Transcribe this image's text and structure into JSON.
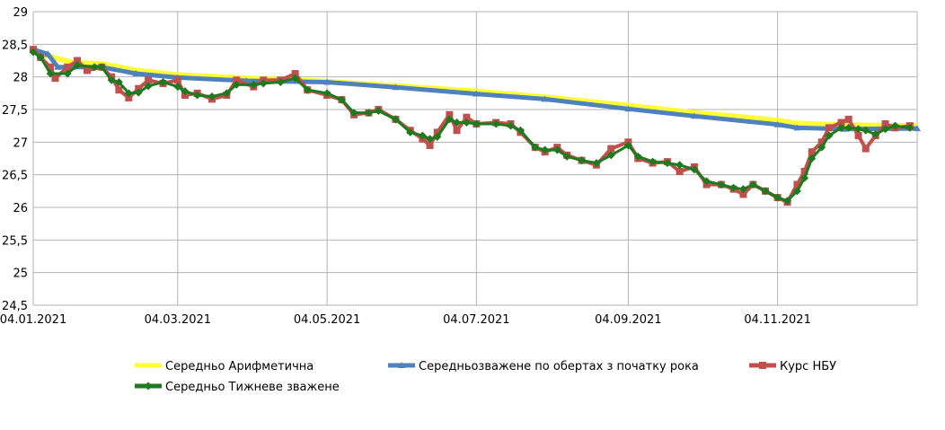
{
  "chart_data": {
    "type": "line",
    "title": "",
    "xlabel": "",
    "ylabel": "",
    "ylim": [
      24.5,
      29
    ],
    "y_ticks": [
      "24,5",
      "25",
      "25,5",
      "26",
      "26,5",
      "27",
      "27,5",
      "28",
      "28,5",
      "29"
    ],
    "x_ticks": [
      "04.01.2021",
      "04.03.2021",
      "04.05.2021",
      "04.07.2021",
      "04.09.2021",
      "04.11.2021"
    ],
    "x_tick_dates": [
      "2021-01-04",
      "2021-03-04",
      "2021-05-04",
      "2021-07-04",
      "2021-09-04",
      "2021-11-04"
    ],
    "xlim": [
      "2021-01-04",
      "2021-12-31"
    ],
    "grid": true,
    "legend_position": "bottom",
    "series": [
      {
        "name": "Середньо Арифметична",
        "color": "#ffff33",
        "marker": "none",
        "points": [
          [
            "2021-01-04",
            28.4
          ],
          [
            "2021-01-10",
            28.32
          ],
          [
            "2021-01-20",
            28.22
          ],
          [
            "2021-02-01",
            28.2
          ],
          [
            "2021-02-15",
            28.1
          ],
          [
            "2021-03-04",
            28.03
          ],
          [
            "2021-04-01",
            27.98
          ],
          [
            "2021-05-04",
            27.93
          ],
          [
            "2021-06-01",
            27.86
          ],
          [
            "2021-07-04",
            27.78
          ],
          [
            "2021-08-01",
            27.69
          ],
          [
            "2021-09-04",
            27.56
          ],
          [
            "2021-10-01",
            27.45
          ],
          [
            "2021-10-25",
            27.37
          ],
          [
            "2021-11-04",
            27.33
          ],
          [
            "2021-11-12",
            27.29
          ],
          [
            "2021-12-01",
            27.26
          ],
          [
            "2021-12-31",
            27.25
          ]
        ]
      },
      {
        "name": "Середньозважене по обертах з початку рока",
        "color": "#4f81bd",
        "marker": "triangle",
        "points": [
          [
            "2021-01-04",
            28.42
          ],
          [
            "2021-01-10",
            28.35
          ],
          [
            "2021-01-14",
            28.15
          ],
          [
            "2021-01-20",
            28.15
          ],
          [
            "2021-02-01",
            28.15
          ],
          [
            "2021-02-15",
            28.05
          ],
          [
            "2021-03-04",
            27.99
          ],
          [
            "2021-04-01",
            27.94
          ],
          [
            "2021-05-04",
            27.92
          ],
          [
            "2021-06-01",
            27.84
          ],
          [
            "2021-07-04",
            27.74
          ],
          [
            "2021-08-01",
            27.66
          ],
          [
            "2021-09-04",
            27.51
          ],
          [
            "2021-10-01",
            27.4
          ],
          [
            "2021-11-04",
            27.27
          ],
          [
            "2021-11-12",
            27.22
          ],
          [
            "2021-12-01",
            27.2
          ],
          [
            "2021-12-31",
            27.21
          ]
        ]
      },
      {
        "name": "Курс НБУ",
        "color": "#c0504d",
        "marker": "square",
        "points": [
          [
            "2021-01-04",
            28.42
          ],
          [
            "2021-01-07",
            28.3
          ],
          [
            "2021-01-11",
            28.15
          ],
          [
            "2021-01-13",
            27.98
          ],
          [
            "2021-01-18",
            28.15
          ],
          [
            "2021-01-22",
            28.25
          ],
          [
            "2021-01-26",
            28.1
          ],
          [
            "2021-02-01",
            28.15
          ],
          [
            "2021-02-05",
            28.0
          ],
          [
            "2021-02-08",
            27.8
          ],
          [
            "2021-02-12",
            27.68
          ],
          [
            "2021-02-16",
            27.82
          ],
          [
            "2021-02-20",
            27.95
          ],
          [
            "2021-02-26",
            27.9
          ],
          [
            "2021-03-04",
            27.95
          ],
          [
            "2021-03-07",
            27.72
          ],
          [
            "2021-03-12",
            27.75
          ],
          [
            "2021-03-18",
            27.66
          ],
          [
            "2021-03-24",
            27.72
          ],
          [
            "2021-03-28",
            27.95
          ],
          [
            "2021-04-04",
            27.85
          ],
          [
            "2021-04-08",
            27.95
          ],
          [
            "2021-04-15",
            27.95
          ],
          [
            "2021-04-21",
            28.05
          ],
          [
            "2021-04-26",
            27.8
          ],
          [
            "2021-05-04",
            27.72
          ],
          [
            "2021-05-10",
            27.65
          ],
          [
            "2021-05-15",
            27.42
          ],
          [
            "2021-05-21",
            27.45
          ],
          [
            "2021-05-25",
            27.5
          ],
          [
            "2021-06-01",
            27.35
          ],
          [
            "2021-06-07",
            27.18
          ],
          [
            "2021-06-12",
            27.05
          ],
          [
            "2021-06-15",
            26.95
          ],
          [
            "2021-06-18",
            27.15
          ],
          [
            "2021-06-23",
            27.42
          ],
          [
            "2021-06-26",
            27.18
          ],
          [
            "2021-06-30",
            27.38
          ],
          [
            "2021-07-04",
            27.28
          ],
          [
            "2021-07-12",
            27.3
          ],
          [
            "2021-07-18",
            27.28
          ],
          [
            "2021-07-22",
            27.15
          ],
          [
            "2021-07-28",
            26.92
          ],
          [
            "2021-08-01",
            26.85
          ],
          [
            "2021-08-06",
            26.92
          ],
          [
            "2021-08-10",
            26.8
          ],
          [
            "2021-08-16",
            26.72
          ],
          [
            "2021-08-22",
            26.65
          ],
          [
            "2021-08-28",
            26.9
          ],
          [
            "2021-09-04",
            27.0
          ],
          [
            "2021-09-08",
            26.75
          ],
          [
            "2021-09-14",
            26.68
          ],
          [
            "2021-09-20",
            26.7
          ],
          [
            "2021-09-25",
            26.55
          ],
          [
            "2021-10-01",
            26.62
          ],
          [
            "2021-10-06",
            26.35
          ],
          [
            "2021-10-12",
            26.35
          ],
          [
            "2021-10-17",
            26.28
          ],
          [
            "2021-10-21",
            26.2
          ],
          [
            "2021-10-25",
            26.35
          ],
          [
            "2021-10-30",
            26.25
          ],
          [
            "2021-11-04",
            26.15
          ],
          [
            "2021-11-08",
            26.08
          ],
          [
            "2021-11-12",
            26.35
          ],
          [
            "2021-11-15",
            26.55
          ],
          [
            "2021-11-18",
            26.85
          ],
          [
            "2021-11-22",
            27.0
          ],
          [
            "2021-11-25",
            27.22
          ],
          [
            "2021-11-30",
            27.3
          ],
          [
            "2021-12-03",
            27.35
          ],
          [
            "2021-12-07",
            27.1
          ],
          [
            "2021-12-10",
            26.9
          ],
          [
            "2021-12-14",
            27.1
          ],
          [
            "2021-12-18",
            27.28
          ],
          [
            "2021-12-22",
            27.22
          ],
          [
            "2021-12-28",
            27.25
          ]
        ]
      },
      {
        "name": "Середньо Тижневе зважене",
        "color": "#1e7a1e",
        "marker": "diamond",
        "points": [
          [
            "2021-01-04",
            28.38
          ],
          [
            "2021-01-07",
            28.3
          ],
          [
            "2021-01-11",
            28.05
          ],
          [
            "2021-01-18",
            28.05
          ],
          [
            "2021-01-22",
            28.18
          ],
          [
            "2021-01-29",
            28.15
          ],
          [
            "2021-02-01",
            28.15
          ],
          [
            "2021-02-05",
            27.95
          ],
          [
            "2021-02-08",
            27.92
          ],
          [
            "2021-02-12",
            27.75
          ],
          [
            "2021-02-16",
            27.76
          ],
          [
            "2021-02-20",
            27.86
          ],
          [
            "2021-02-26",
            27.92
          ],
          [
            "2021-03-04",
            27.85
          ],
          [
            "2021-03-07",
            27.78
          ],
          [
            "2021-03-12",
            27.72
          ],
          [
            "2021-03-18",
            27.7
          ],
          [
            "2021-03-24",
            27.75
          ],
          [
            "2021-03-28",
            27.88
          ],
          [
            "2021-04-04",
            27.88
          ],
          [
            "2021-04-08",
            27.9
          ],
          [
            "2021-04-15",
            27.92
          ],
          [
            "2021-04-21",
            27.98
          ],
          [
            "2021-04-26",
            27.8
          ],
          [
            "2021-05-04",
            27.75
          ],
          [
            "2021-05-10",
            27.65
          ],
          [
            "2021-05-15",
            27.45
          ],
          [
            "2021-05-21",
            27.45
          ],
          [
            "2021-05-25",
            27.48
          ],
          [
            "2021-06-01",
            27.35
          ],
          [
            "2021-06-07",
            27.15
          ],
          [
            "2021-06-12",
            27.1
          ],
          [
            "2021-06-15",
            27.05
          ],
          [
            "2021-06-18",
            27.08
          ],
          [
            "2021-06-23",
            27.35
          ],
          [
            "2021-06-26",
            27.3
          ],
          [
            "2021-06-30",
            27.3
          ],
          [
            "2021-07-04",
            27.28
          ],
          [
            "2021-07-12",
            27.28
          ],
          [
            "2021-07-18",
            27.25
          ],
          [
            "2021-07-22",
            27.18
          ],
          [
            "2021-07-28",
            26.92
          ],
          [
            "2021-08-01",
            26.88
          ],
          [
            "2021-08-06",
            26.88
          ],
          [
            "2021-08-10",
            26.78
          ],
          [
            "2021-08-16",
            26.72
          ],
          [
            "2021-08-22",
            26.68
          ],
          [
            "2021-08-28",
            26.8
          ],
          [
            "2021-09-04",
            26.95
          ],
          [
            "2021-09-08",
            26.78
          ],
          [
            "2021-09-14",
            26.7
          ],
          [
            "2021-09-20",
            26.68
          ],
          [
            "2021-09-25",
            26.65
          ],
          [
            "2021-10-01",
            26.58
          ],
          [
            "2021-10-06",
            26.4
          ],
          [
            "2021-10-12",
            26.35
          ],
          [
            "2021-10-17",
            26.3
          ],
          [
            "2021-10-21",
            26.28
          ],
          [
            "2021-10-25",
            26.35
          ],
          [
            "2021-10-30",
            26.25
          ],
          [
            "2021-11-04",
            26.15
          ],
          [
            "2021-11-08",
            26.1
          ],
          [
            "2021-11-12",
            26.25
          ],
          [
            "2021-11-15",
            26.45
          ],
          [
            "2021-11-18",
            26.75
          ],
          [
            "2021-11-22",
            26.92
          ],
          [
            "2021-11-25",
            27.1
          ],
          [
            "2021-11-30",
            27.22
          ],
          [
            "2021-12-03",
            27.22
          ],
          [
            "2021-12-07",
            27.2
          ],
          [
            "2021-12-10",
            27.18
          ],
          [
            "2021-12-14",
            27.12
          ],
          [
            "2021-12-18",
            27.2
          ],
          [
            "2021-12-22",
            27.25
          ],
          [
            "2021-12-28",
            27.22
          ]
        ]
      }
    ]
  },
  "legend": [
    {
      "label": "Середньо Арифметична",
      "color": "#ffff33",
      "marker": "none"
    },
    {
      "label": "Середньозважене по обертах з початку рока",
      "color": "#4f81bd",
      "marker": "triangle"
    },
    {
      "label": "Курс НБУ",
      "color": "#c0504d",
      "marker": "square"
    },
    {
      "label": "Середньо Тижневе зважене",
      "color": "#1e7a1e",
      "marker": "diamond"
    }
  ]
}
